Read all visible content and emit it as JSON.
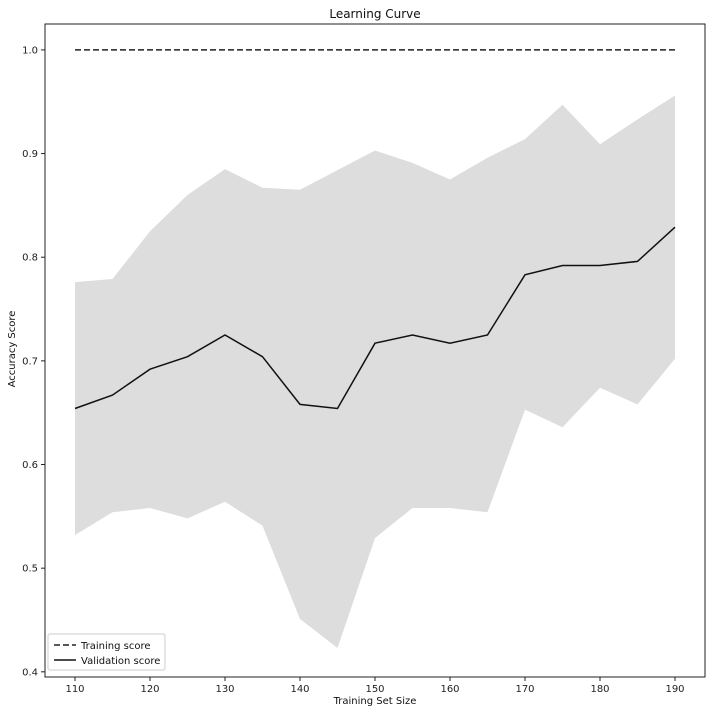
{
  "chart_data": {
    "type": "line",
    "title": "Learning Curve",
    "xlabel": "Training Set Size",
    "ylabel": "Accuracy Score",
    "xlim": [
      106,
      194
    ],
    "ylim": [
      0.395,
      1.025
    ],
    "xticks": [
      "110",
      "120",
      "130",
      "140",
      "150",
      "160",
      "170",
      "180",
      "190"
    ],
    "yticks": [
      "0.4",
      "0.5",
      "0.6",
      "0.7",
      "0.8",
      "0.9",
      "1.0"
    ],
    "grid": false,
    "legend_position": "lower-left",
    "x": [
      110,
      115,
      120,
      125,
      130,
      135,
      140,
      145,
      150,
      155,
      160,
      165,
      170,
      175,
      180,
      185,
      190
    ],
    "series": [
      {
        "name": "Training score",
        "style": "dashed",
        "color": "#222222",
        "values": [
          1.0,
          1.0,
          1.0,
          1.0,
          1.0,
          1.0,
          1.0,
          1.0,
          1.0,
          1.0,
          1.0,
          1.0,
          1.0,
          1.0,
          1.0,
          1.0,
          1.0
        ]
      },
      {
        "name": "Validation score",
        "style": "solid",
        "color": "#111111",
        "values": [
          0.654,
          0.667,
          0.692,
          0.704,
          0.725,
          0.704,
          0.658,
          0.654,
          0.717,
          0.725,
          0.717,
          0.725,
          0.783,
          0.792,
          0.792,
          0.796,
          0.829
        ],
        "band_color": "#dddddd",
        "band_upper": [
          0.776,
          0.779,
          0.825,
          0.86,
          0.885,
          0.867,
          0.865,
          0.884,
          0.903,
          0.891,
          0.875,
          0.896,
          0.914,
          0.947,
          0.909,
          0.933,
          0.956
        ],
        "band_lower": [
          0.532,
          0.554,
          0.558,
          0.548,
          0.564,
          0.541,
          0.451,
          0.423,
          0.529,
          0.558,
          0.558,
          0.554,
          0.653,
          0.636,
          0.674,
          0.658,
          0.702
        ]
      }
    ]
  }
}
